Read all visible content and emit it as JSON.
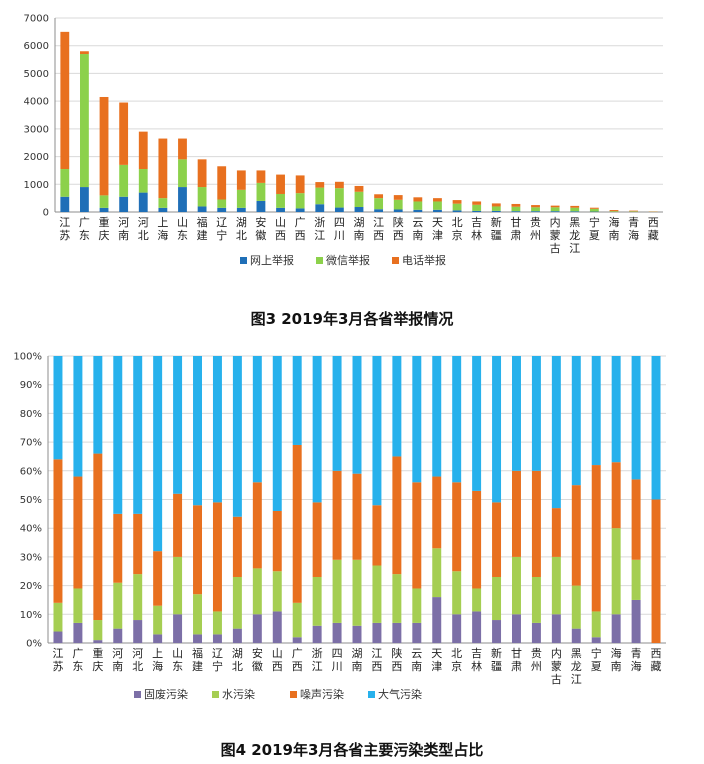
{
  "colors": {
    "online": "#1F6FB7",
    "wechat": "#8CD14B",
    "phone": "#E8701F",
    "solid": "#7C6FA7",
    "water": "#A5CE52",
    "noise": "#E8701F",
    "air": "#27B1EC",
    "grid": "#D9D9D9",
    "axis": "#8C8C8C"
  },
  "chart_data": [
    {
      "type": "bar",
      "stacked": true,
      "title": "图3 2019年3月各省举报情况",
      "categories": [
        "江苏",
        "广东",
        "重庆",
        "河南",
        "河北",
        "上海",
        "山东",
        "福建",
        "辽宁",
        "湖北",
        "安徽",
        "山西",
        "广西",
        "浙江",
        "四川",
        "湖南",
        "江西",
        "陕西",
        "云南",
        "天津",
        "北京",
        "吉林",
        "新疆",
        "甘肃",
        "贵州",
        "内蒙古",
        "黑龙江",
        "宁夏",
        "海南",
        "青海",
        "西藏"
      ],
      "ylim": [
        0,
        7000
      ],
      "yticks": [
        0,
        1000,
        2000,
        3000,
        4000,
        5000,
        6000,
        7000
      ],
      "grid": true,
      "legend_position": "bottom",
      "series": [
        {
          "name": "网上举报",
          "color_key": "online",
          "values": [
            550,
            900,
            150,
            550,
            700,
            150,
            900,
            200,
            150,
            150,
            400,
            150,
            130,
            280,
            160,
            180,
            100,
            90,
            80,
            80,
            60,
            40,
            40,
            30,
            30,
            30,
            25,
            15,
            5,
            5,
            2
          ]
        },
        {
          "name": "微信举报",
          "color_key": "wechat",
          "values": [
            1000,
            4800,
            450,
            1150,
            850,
            350,
            1000,
            700,
            300,
            650,
            650,
            500,
            550,
            600,
            700,
            550,
            400,
            350,
            300,
            300,
            240,
            220,
            160,
            160,
            140,
            140,
            130,
            100,
            25,
            20,
            8
          ]
        },
        {
          "name": "电话举报",
          "color_key": "phone",
          "values": [
            4950,
            100,
            3550,
            2250,
            1350,
            2150,
            750,
            1000,
            1200,
            700,
            450,
            700,
            640,
            200,
            230,
            210,
            140,
            170,
            150,
            120,
            130,
            120,
            110,
            100,
            80,
            60,
            65,
            40,
            40,
            25,
            10
          ]
        }
      ]
    },
    {
      "type": "bar",
      "stacked": true,
      "percent": true,
      "title": "图4 2019年3月各省主要污染类型占比",
      "categories": [
        "江苏",
        "广东",
        "重庆",
        "河南",
        "河北",
        "上海",
        "山东",
        "福建",
        "辽宁",
        "湖北",
        "安徽",
        "山西",
        "广西",
        "浙江",
        "四川",
        "湖南",
        "江西",
        "陕西",
        "云南",
        "天津",
        "北京",
        "吉林",
        "新疆",
        "甘肃",
        "贵州",
        "内蒙古",
        "黑龙江",
        "宁夏",
        "海南",
        "青海",
        "西藏"
      ],
      "ylim": [
        0,
        100
      ],
      "yticks": [
        "0%",
        "10%",
        "20%",
        "30%",
        "40%",
        "50%",
        "60%",
        "70%",
        "80%",
        "90%",
        "100%"
      ],
      "grid": true,
      "legend_position": "bottom",
      "series": [
        {
          "name": "固废污染",
          "color_key": "solid",
          "values": [
            4,
            7,
            1,
            5,
            8,
            3,
            10,
            3,
            3,
            5,
            10,
            11,
            2,
            6,
            7,
            6,
            7,
            7,
            7,
            16,
            10,
            11,
            8,
            10,
            7,
            10,
            5,
            2,
            10,
            15,
            0
          ]
        },
        {
          "name": "水污染",
          "color_key": "water",
          "values": [
            10,
            12,
            7,
            16,
            16,
            10,
            20,
            14,
            8,
            18,
            16,
            14,
            12,
            17,
            22,
            23,
            20,
            17,
            12,
            17,
            15,
            8,
            15,
            20,
            16,
            20,
            15,
            9,
            30,
            14,
            0
          ]
        },
        {
          "name": "噪声污染",
          "color_key": "noise",
          "values": [
            50,
            39,
            58,
            24,
            21,
            19,
            22,
            31,
            38,
            21,
            30,
            21,
            55,
            26,
            31,
            30,
            21,
            41,
            37,
            25,
            31,
            34,
            26,
            30,
            37,
            17,
            35,
            51,
            23,
            28,
            50
          ]
        },
        {
          "name": "大气污染",
          "color_key": "air",
          "values": [
            36,
            42,
            34,
            55,
            55,
            68,
            48,
            52,
            51,
            56,
            44,
            54,
            31,
            51,
            40,
            41,
            52,
            35,
            44,
            42,
            44,
            47,
            51,
            40,
            40,
            53,
            45,
            38,
            37,
            43,
            50
          ]
        }
      ]
    }
  ]
}
